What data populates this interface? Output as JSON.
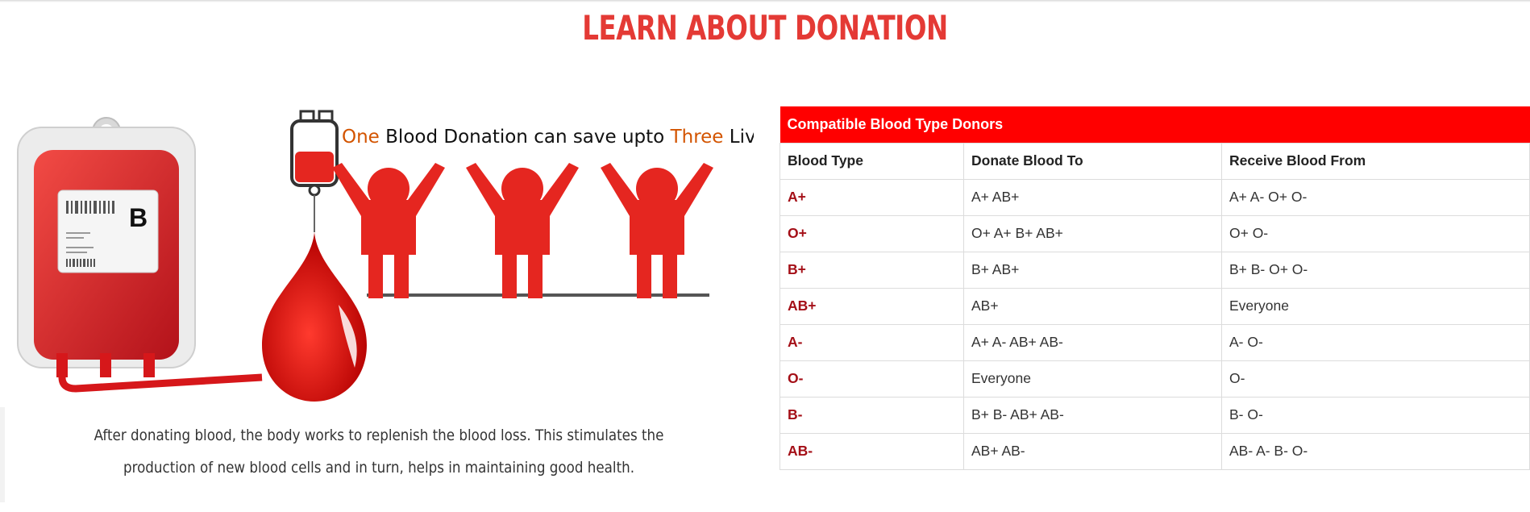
{
  "page": {
    "title": "LEARN ABOUT DONATION",
    "caption": "After donating blood, the body works to replenish the blood loss. This stimulates the production of new blood cells and in turn, helps in maintaining good health."
  },
  "illustration": {
    "bag_label": "B",
    "tagline": {
      "one": "One",
      "middle": " Blood Donation can save upto ",
      "three": "Three",
      "end": " Lives"
    }
  },
  "table": {
    "title": "Compatible Blood Type Donors",
    "headers": [
      "Blood Type",
      "Donate Blood To",
      "Receive Blood From"
    ],
    "rows": [
      {
        "type": "A+",
        "donate": "A+ AB+",
        "receive": "A+ A- O+ O-"
      },
      {
        "type": "O+",
        "donate": "O+ A+ B+ AB+",
        "receive": "O+ O-"
      },
      {
        "type": "B+",
        "donate": "B+ AB+",
        "receive": "B+ B- O+ O-"
      },
      {
        "type": "AB+",
        "donate": "AB+",
        "receive": "Everyone"
      },
      {
        "type": "A-",
        "donate": "A+ A- AB+ AB-",
        "receive": "A- O-"
      },
      {
        "type": "O-",
        "donate": "Everyone",
        "receive": "O-"
      },
      {
        "type": "B-",
        "donate": "B+ B- AB+ AB-",
        "receive": "B- O-"
      },
      {
        "type": "AB-",
        "donate": "AB+ AB-",
        "receive": "AB- A- B- O-"
      }
    ]
  },
  "colors": {
    "title_red": "#e43a35",
    "table_header_red": "#ff0000",
    "type_red": "#a40f17",
    "figure_red": "#e52620",
    "tagline_orange": "#d35400"
  }
}
